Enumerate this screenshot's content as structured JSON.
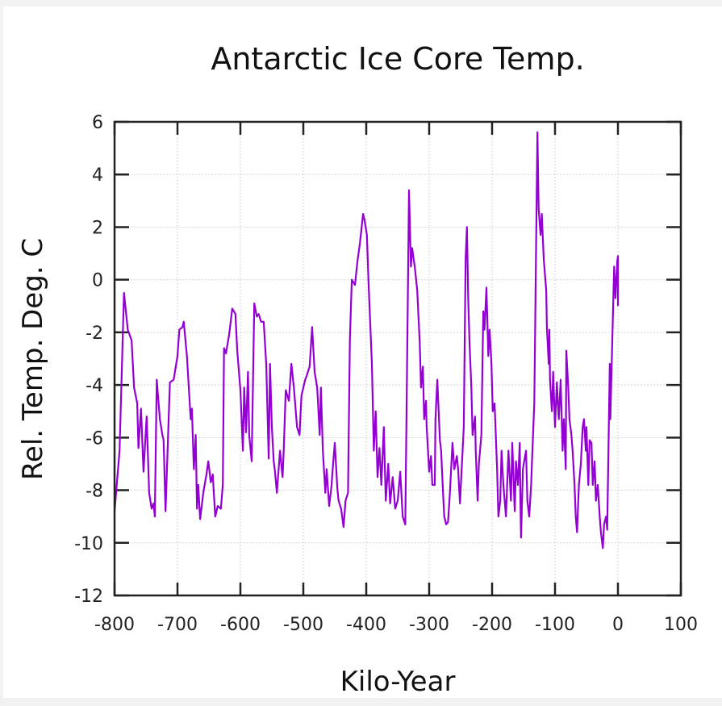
{
  "chart_data": {
    "type": "line",
    "title": "Antarctic Ice Core Temp.",
    "xlabel": "Kilo-Year",
    "ylabel": "Rel. Temp. Deg. C",
    "xlim": [
      -800,
      100
    ],
    "ylim": [
      -12,
      6
    ],
    "xticks": [
      -800,
      -700,
      -600,
      -500,
      -400,
      -300,
      -200,
      -100,
      0,
      100
    ],
    "yticks": [
      6,
      4,
      2,
      0,
      -2,
      -4,
      -6,
      -8,
      -10,
      -12
    ],
    "xtick_labels": [
      "-800",
      "-700",
      "-600",
      "-500",
      "-400",
      "-300",
      "-200",
      "-100",
      "0",
      "100"
    ],
    "ytick_labels": [
      "6",
      "4",
      "2",
      "0",
      "-2",
      "-4",
      "-6",
      "-8",
      "-10",
      "-12"
    ],
    "grid": true,
    "legend": "none",
    "series": [
      {
        "name": "Antarctic ice core temperature",
        "color": "#9400d3",
        "x": [
          -800,
          -792,
          -785,
          -779,
          -773,
          -769,
          -764,
          -762,
          -758,
          -754,
          -749,
          -745,
          -741,
          -738,
          -736,
          -733,
          -728,
          -724,
          -722,
          -719,
          -712,
          -706,
          -700,
          -697,
          -692,
          -690,
          -685,
          -679,
          -677,
          -674,
          -671,
          -669,
          -667,
          -664,
          -659,
          -654,
          -651,
          -647,
          -644,
          -640,
          -636,
          -631,
          -628,
          -626,
          -623,
          -618,
          -613,
          -608,
          -605,
          -600,
          -596,
          -594,
          -591,
          -588,
          -586,
          -582,
          -578,
          -574,
          -571,
          -567,
          -563,
          -559,
          -555,
          -553,
          -550,
          -547,
          -545,
          -542,
          -537,
          -533,
          -531,
          -528,
          -523,
          -519,
          -515,
          -510,
          -506,
          -503,
          -497,
          -494,
          -490,
          -486,
          -482,
          -478,
          -474,
          -472,
          -469,
          -465,
          -463,
          -459,
          -455,
          -454,
          -450,
          -446,
          -444,
          -440,
          -436,
          -433,
          -429,
          -426,
          -423,
          -418,
          -414,
          -410,
          -405,
          -403,
          -399,
          -396,
          -391,
          -388,
          -385,
          -382,
          -379,
          -376,
          -372,
          -369,
          -365,
          -362,
          -358,
          -354,
          -350,
          -346,
          -342,
          -338,
          -333,
          -332,
          -329,
          -327,
          -323,
          -319,
          -315,
          -313,
          -310,
          -308,
          -305,
          -304,
          -300,
          -297,
          -295,
          -291,
          -290,
          -287,
          -283,
          -281,
          -278,
          -276,
          -273,
          -270,
          -267,
          -263,
          -260,
          -256,
          -254,
          -251,
          -249,
          -245,
          -242,
          -240,
          -238,
          -236,
          -233,
          -231,
          -227,
          -226,
          -223,
          -221,
          -217,
          -214,
          -212,
          -209,
          -206,
          -204,
          -201,
          -199,
          -196,
          -192,
          -190,
          -187,
          -185,
          -182,
          -178,
          -174,
          -170,
          -168,
          -164,
          -162,
          -159,
          -156,
          -155,
          -154,
          -151,
          -149,
          -146,
          -144,
          -141,
          -138,
          -137,
          -133,
          -128,
          -126,
          -123,
          -121,
          -118,
          -115,
          -114,
          -113,
          -110,
          -109,
          -108,
          -105,
          -104,
          -103,
          -100,
          -97,
          -95,
          -94,
          -91,
          -88,
          -86,
          -83,
          -82,
          -79,
          -77,
          -74,
          -72,
          -69,
          -67,
          -65,
          -62,
          -59,
          -56,
          -54,
          -51,
          -50,
          -47,
          -45,
          -42,
          -40,
          -37,
          -35,
          -32,
          -29,
          -27,
          -24,
          -22,
          -19,
          -17,
          -13,
          -12,
          -9,
          -6,
          -4,
          -1,
          0,
          0
        ],
        "y": [
          -8.8,
          -6.5,
          -0.5,
          -1.9,
          -2.3,
          -4.1,
          -4.7,
          -6.4,
          -4.9,
          -7.3,
          -5.2,
          -8.1,
          -8.7,
          -8.5,
          -9.0,
          -3.8,
          -5.3,
          -5.9,
          -6.1,
          -8.8,
          -3.9,
          -3.8,
          -2.9,
          -1.9,
          -1.8,
          -1.6,
          -2.9,
          -5.3,
          -4.9,
          -7.2,
          -5.9,
          -8.7,
          -7.8,
          -9.1,
          -8.1,
          -7.4,
          -6.9,
          -7.7,
          -7.4,
          -9.0,
          -8.6,
          -8.7,
          -7.8,
          -2.6,
          -2.8,
          -2.1,
          -1.1,
          -1.3,
          -2.7,
          -4.2,
          -6.5,
          -4.1,
          -5.8,
          -3.5,
          -5.9,
          -6.9,
          -0.9,
          -1.4,
          -1.3,
          -1.6,
          -1.6,
          -3.2,
          -6.8,
          -3.2,
          -5.6,
          -6.9,
          -7.3,
          -8.1,
          -6.5,
          -7.5,
          -6.4,
          -4.2,
          -4.6,
          -3.2,
          -4.1,
          -5.6,
          -5.9,
          -4.4,
          -3.8,
          -3.6,
          -3.3,
          -1.8,
          -3.5,
          -4.1,
          -5.9,
          -4.1,
          -6.5,
          -8.1,
          -7.2,
          -8.6,
          -7.8,
          -7.4,
          -6.2,
          -7.9,
          -8.4,
          -8.7,
          -9.4,
          -8.4,
          -8.1,
          -2.3,
          0.0,
          -0.2,
          0.7,
          1.4,
          2.5,
          2.3,
          1.7,
          -0.3,
          -3.2,
          -6.5,
          -5.0,
          -7.5,
          -6.4,
          -7.8,
          -5.6,
          -8.4,
          -7.0,
          -8.5,
          -7.5,
          -8.7,
          -8.4,
          -7.3,
          -9.0,
          -9.3,
          1.4,
          3.4,
          0.5,
          1.2,
          0.5,
          -0.4,
          -2.4,
          -4.1,
          -3.3,
          -5.3,
          -4.6,
          -5.6,
          -7.3,
          -6.7,
          -7.8,
          -7.8,
          -5.3,
          -3.8,
          -6.1,
          -6.5,
          -8.1,
          -9.0,
          -9.3,
          -9.2,
          -8.1,
          -6.2,
          -7.2,
          -6.7,
          -7.2,
          -8.5,
          -7.5,
          -5.6,
          0.8,
          2.0,
          -0.7,
          -2.3,
          -4.1,
          -5.9,
          -5.2,
          -6.5,
          -8.4,
          -7.0,
          -5.9,
          -1.2,
          -1.9,
          -0.3,
          -2.9,
          -1.9,
          -3.2,
          -5.0,
          -4.7,
          -7.2,
          -9.0,
          -8.4,
          -6.5,
          -7.8,
          -9.0,
          -6.5,
          -8.4,
          -6.2,
          -8.8,
          -6.9,
          -7.8,
          -6.2,
          -8.4,
          -9.8,
          -7.2,
          -6.9,
          -6.5,
          -8.4,
          -9.0,
          -7.8,
          -7.2,
          -4.7,
          5.6,
          2.7,
          1.7,
          2.5,
          0.8,
          -0.1,
          -0.4,
          -1.8,
          -3.2,
          -1.9,
          -3.8,
          -5.0,
          -4.4,
          -3.5,
          -5.6,
          -3.9,
          -4.9,
          -5.3,
          -3.8,
          -6.5,
          -5.3,
          -7.2,
          -2.7,
          -4.1,
          -5.3,
          -5.9,
          -6.5,
          -7.8,
          -9.0,
          -9.6,
          -7.8,
          -7.0,
          -5.6,
          -5.3,
          -6.5,
          -5.6,
          -7.8,
          -6.1,
          -6.2,
          -7.8,
          -6.9,
          -8.4,
          -7.8,
          -9.0,
          -9.6,
          -10.2,
          -9.3,
          -9.0,
          -9.5,
          -3.2,
          -5.3,
          -2.3,
          0.5,
          -0.7,
          0.7,
          0.9,
          -1.0
        ]
      }
    ]
  }
}
